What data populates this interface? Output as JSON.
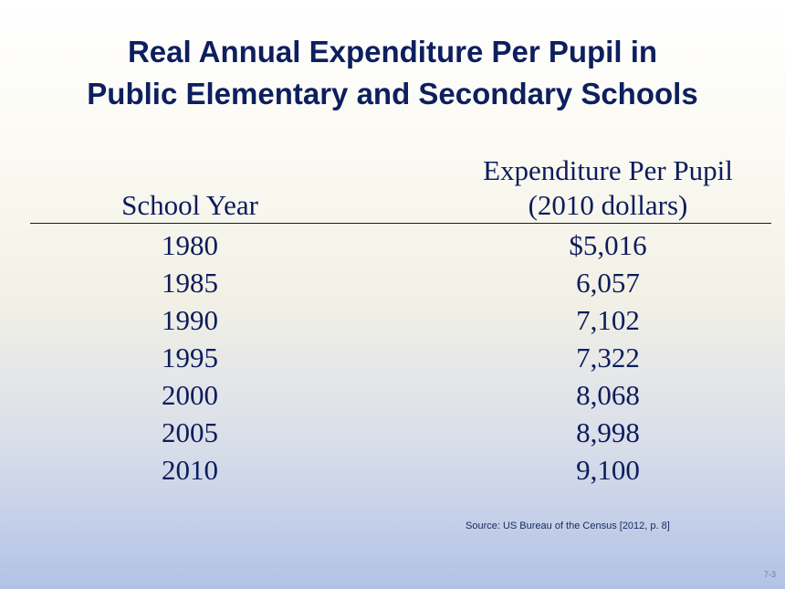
{
  "title": {
    "line1": "Real Annual Expenditure Per Pupil in",
    "line2": "Public Elementary and Secondary Schools"
  },
  "table": {
    "header_year": "School Year",
    "header_exp_line1": "Expenditure Per Pupil",
    "header_exp_line2": "(2010 dollars)",
    "rows": [
      {
        "year": "1980",
        "value": "$5,016"
      },
      {
        "year": "1985",
        "value": "6,057"
      },
      {
        "year": "1990",
        "value": "7,102"
      },
      {
        "year": "1995",
        "value": "7,322"
      },
      {
        "year": "2000",
        "value": "8,068"
      },
      {
        "year": "2005",
        "value": "8,998"
      },
      {
        "year": "2010",
        "value": "9,100"
      }
    ]
  },
  "source": "Source:  US Bureau of the Census [2012, p. 8]",
  "page_number": "7-3"
}
